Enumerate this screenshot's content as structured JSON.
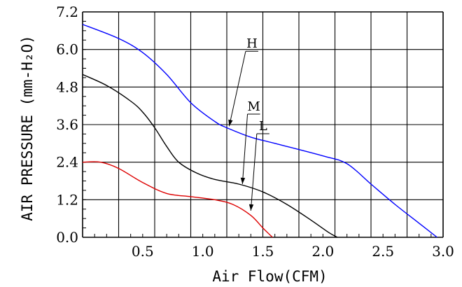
{
  "chart_data": {
    "type": "line",
    "title": "",
    "xlabel": "Air Flow(CFM)",
    "ylabel": "AIR PRESSURE (mm-H₂O)",
    "xlim": [
      0.0,
      3.0
    ],
    "ylim": [
      0.0,
      7.2
    ],
    "xticks": [
      "0.5",
      "1.0",
      "1.5",
      "2.0",
      "2.5",
      "3.0"
    ],
    "yticks": [
      "0.0",
      "1.2",
      "2.4",
      "3.6",
      "4.8",
      "6.0",
      "7.2"
    ],
    "grid": true,
    "legend": "none",
    "series": [
      {
        "name": "H",
        "color": "#0000ff",
        "x": [
          0.0,
          0.3,
          0.5,
          0.7,
          0.9,
          1.1,
          1.2,
          1.4,
          1.6,
          2.0,
          2.2,
          2.4,
          2.6,
          2.8,
          2.95
        ],
        "y": [
          6.8,
          6.35,
          5.9,
          5.2,
          4.3,
          3.7,
          3.5,
          3.2,
          3.0,
          2.6,
          2.35,
          1.7,
          1.05,
          0.45,
          0.0
        ]
      },
      {
        "name": "M",
        "color": "#000000",
        "x": [
          0.0,
          0.2,
          0.4,
          0.5,
          0.6,
          0.7,
          0.8,
          0.95,
          1.1,
          1.3,
          1.5,
          1.7,
          1.9,
          2.05,
          2.12
        ],
        "y": [
          5.2,
          4.85,
          4.35,
          4.0,
          3.5,
          2.9,
          2.4,
          2.05,
          1.85,
          1.7,
          1.45,
          1.05,
          0.55,
          0.15,
          0.0
        ]
      },
      {
        "name": "L",
        "color": "#dd0000",
        "x": [
          0.0,
          0.15,
          0.3,
          0.5,
          0.7,
          0.9,
          1.1,
          1.25,
          1.4,
          1.5,
          1.58
        ],
        "y": [
          2.4,
          2.4,
          2.2,
          1.75,
          1.4,
          1.3,
          1.2,
          1.05,
          0.7,
          0.3,
          0.0
        ]
      }
    ],
    "annotations": [
      {
        "label": "H",
        "tip_x": 1.22,
        "tip_y": 3.55
      },
      {
        "label": "M",
        "tip_x": 1.33,
        "tip_y": 1.7
      },
      {
        "label": "L",
        "tip_x": 1.4,
        "tip_y": 0.85
      }
    ]
  }
}
